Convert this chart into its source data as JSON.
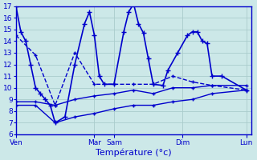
{
  "background_color": "#cce8e8",
  "grid_color": "#aacccc",
  "line_color": "#0000cc",
  "xlabel": "Température (°c)",
  "ylim": [
    6,
    17
  ],
  "yticks": [
    6,
    7,
    8,
    9,
    10,
    11,
    12,
    13,
    14,
    15,
    16,
    17
  ],
  "xlim": [
    0,
    48
  ],
  "day_labels": [
    "Ven",
    "Mar",
    "Sam",
    "Dim",
    "Lun"
  ],
  "day_positions": [
    0,
    16,
    20,
    34,
    47
  ],
  "series": [
    {
      "x": [
        0,
        1,
        2,
        3,
        4,
        5,
        6,
        7,
        8,
        10,
        12,
        14,
        15,
        16,
        17,
        18,
        20,
        22,
        23,
        24,
        25,
        26,
        27,
        28,
        30,
        31,
        33,
        35,
        36,
        37,
        38,
        39,
        40,
        42,
        47
      ],
      "y": [
        17,
        14.8,
        14.0,
        12.0,
        10.0,
        9.5,
        9.0,
        8.5,
        7.0,
        7.5,
        12.0,
        15.5,
        16.5,
        14.5,
        11.0,
        10.3,
        10.3,
        14.8,
        16.5,
        17.2,
        15.5,
        14.7,
        12.5,
        10.3,
        10.2,
        11.5,
        13.0,
        14.5,
        14.8,
        14.8,
        14.0,
        13.8,
        11.0,
        11.0,
        9.8
      ],
      "marker": "+",
      "markersize": 4,
      "linewidth": 1.2,
      "linestyle": "-"
    },
    {
      "x": [
        0,
        4,
        8,
        12,
        16,
        20,
        24,
        28,
        32,
        36,
        40,
        47
      ],
      "y": [
        14.5,
        12.8,
        8.5,
        13.0,
        10.3,
        10.3,
        10.3,
        10.3,
        11.0,
        10.5,
        10.2,
        9.8
      ],
      "marker": "+",
      "markersize": 3.5,
      "linewidth": 1.0,
      "linestyle": "--"
    },
    {
      "x": [
        0,
        4,
        8,
        12,
        16,
        20,
        24,
        28,
        32,
        36,
        40,
        47
      ],
      "y": [
        8.8,
        8.8,
        8.5,
        9.0,
        9.3,
        9.5,
        9.8,
        9.5,
        10.0,
        10.0,
        10.2,
        10.2
      ],
      "marker": "+",
      "markersize": 3.5,
      "linewidth": 1.0,
      "linestyle": "-"
    },
    {
      "x": [
        0,
        4,
        8,
        12,
        16,
        20,
        24,
        28,
        32,
        36,
        40,
        47
      ],
      "y": [
        8.5,
        8.5,
        7.0,
        7.5,
        7.8,
        8.2,
        8.5,
        8.5,
        8.8,
        9.0,
        9.5,
        9.8
      ],
      "marker": "+",
      "markersize": 3.5,
      "linewidth": 1.0,
      "linestyle": "-"
    }
  ]
}
